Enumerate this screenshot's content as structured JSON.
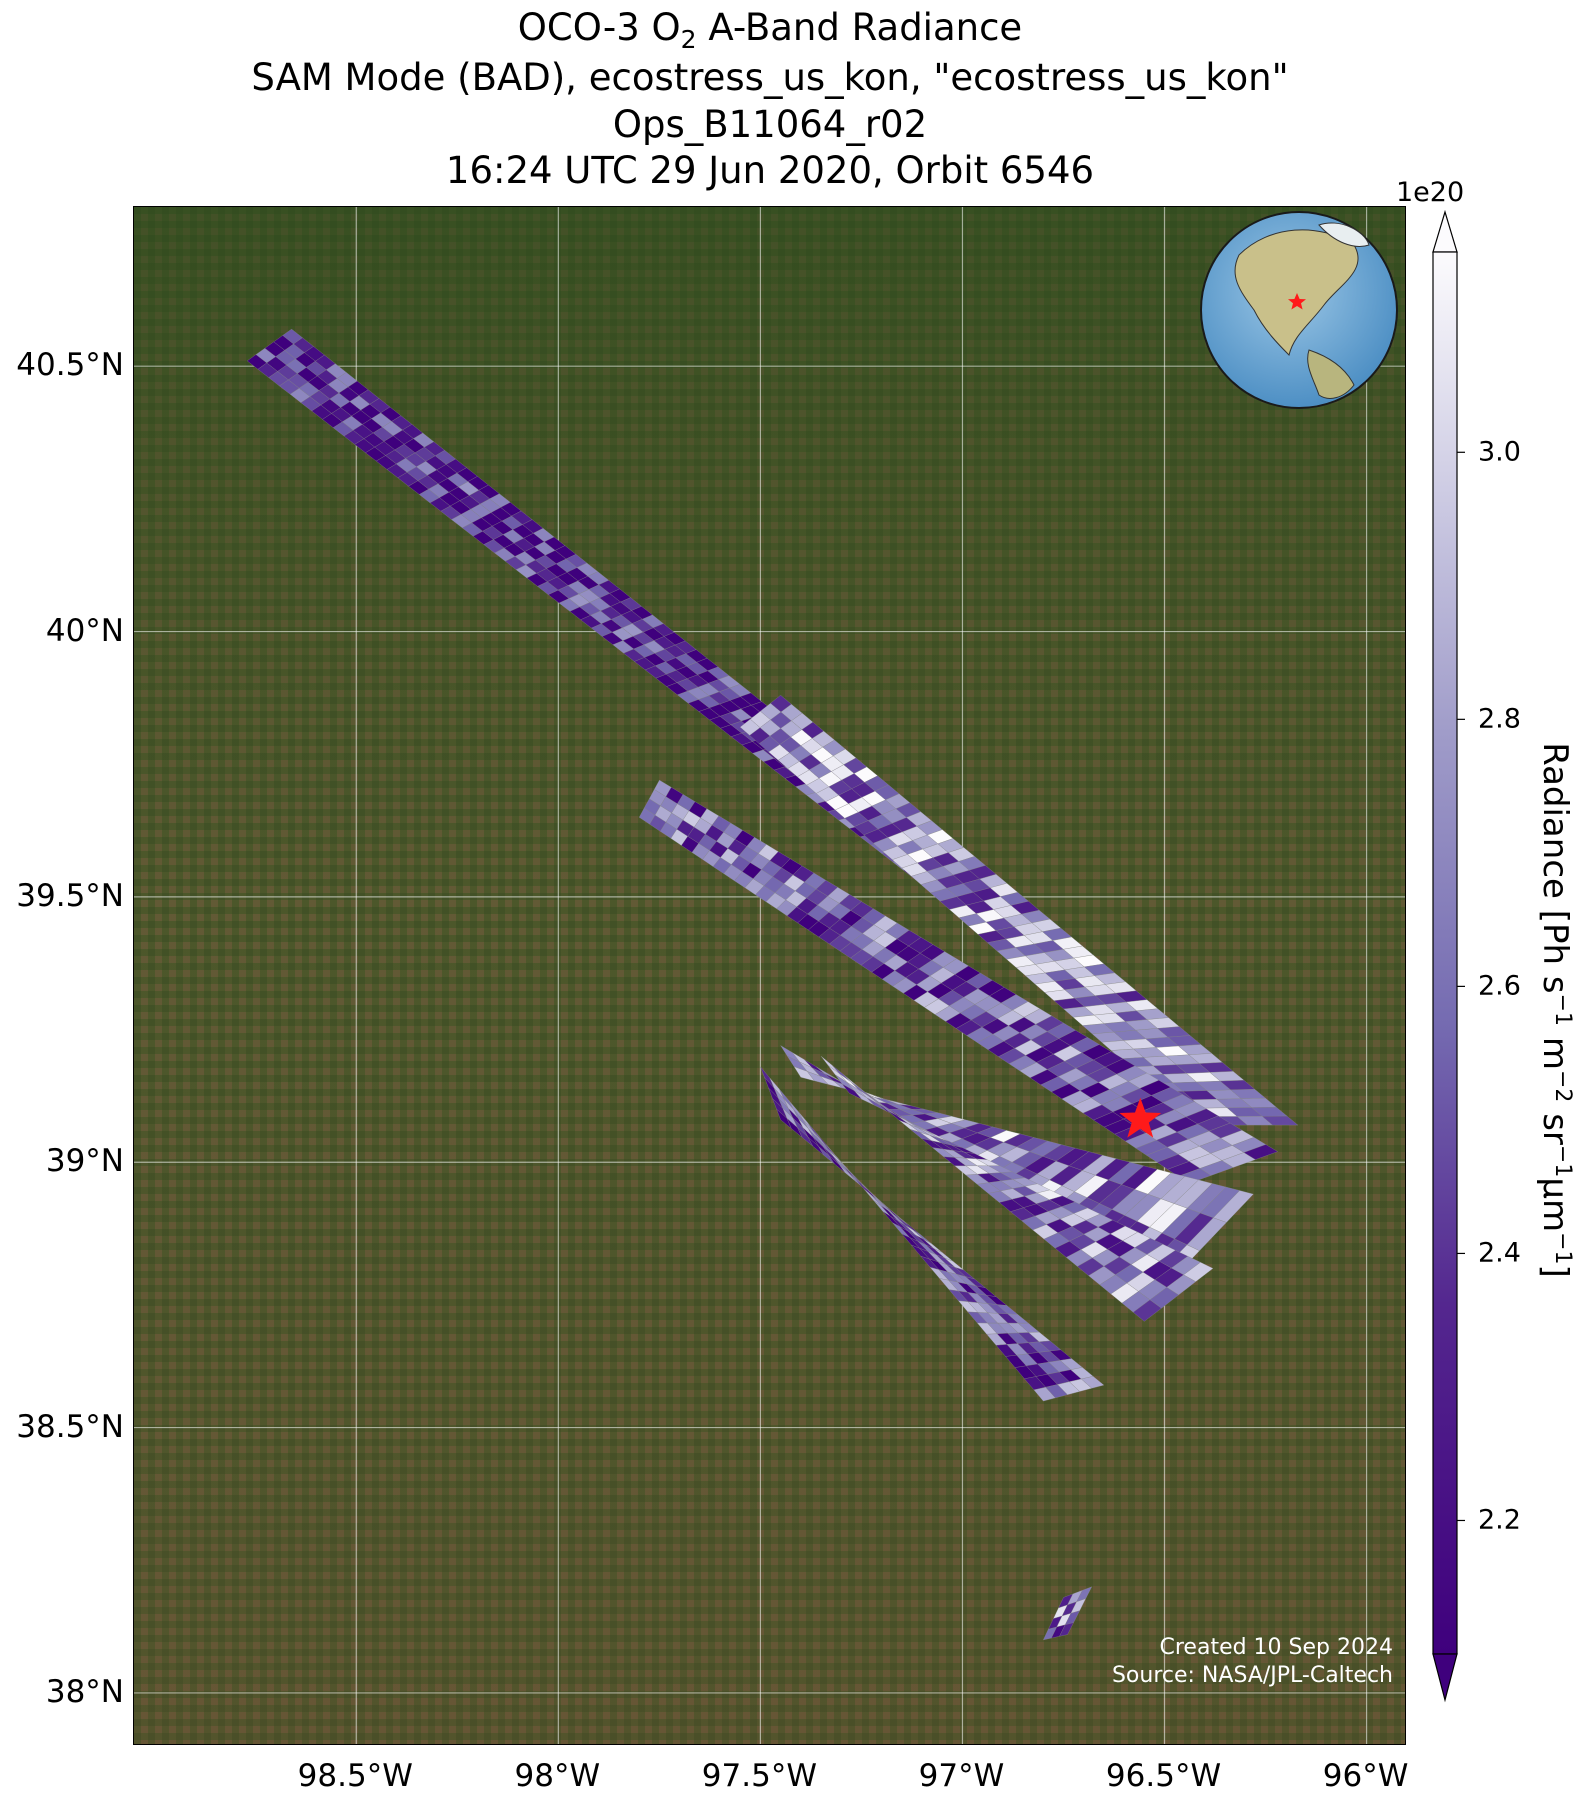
{
  "title": {
    "line1_prefix": "OCO-3 O",
    "line1_sub": "2",
    "line1_suffix": " A-Band Radiance",
    "line2": "SAM Mode (BAD), ecostress_us_kon, \"ecostress_us_kon\"",
    "line3": "Ops_B11064_r02",
    "line4": "16:24 UTC 29 Jun 2020, Orbit 6546"
  },
  "map": {
    "lon_range": [
      -99.05,
      -95.9
    ],
    "lat_range": [
      37.9,
      40.8
    ],
    "lon_ticks": [
      -98.5,
      -98.0,
      -97.5,
      -97.0,
      -96.5,
      -96.0
    ],
    "lon_tick_labels": [
      "98.5°W",
      "98°W",
      "97.5°W",
      "97°W",
      "96.5°W",
      "96°W"
    ],
    "lat_ticks": [
      40.5,
      40.0,
      39.5,
      39.0,
      38.5,
      38.0
    ],
    "lat_tick_labels": [
      "40.5°N",
      "40°N",
      "39.5°N",
      "39°N",
      "38.5°N",
      "38°N"
    ],
    "gridlines": true,
    "basemap": "satellite imagery",
    "target": {
      "lon": -96.56,
      "lat": 39.08,
      "marker": "red star"
    },
    "inset": "globe with red star over central United States",
    "credit_line1": "Created 10 Sep 2024",
    "credit_line2": "Source: NASA/JPL-Caltech"
  },
  "chart_data": {
    "type": "heatmap",
    "colormap": "Purples_r",
    "value_range": [
      2.1e+20,
      3.15e+20
    ],
    "swaths": [
      {
        "corners": [
          [
            -98.77,
            40.51
          ],
          [
            -98.66,
            40.57
          ],
          [
            -96.82,
            39.46
          ],
          [
            -96.96,
            39.44
          ]
        ],
        "mean": 2.3e+20
      },
      {
        "corners": [
          [
            -97.55,
            39.82
          ],
          [
            -97.45,
            39.88
          ],
          [
            -96.17,
            39.07
          ],
          [
            -96.42,
            39.07
          ]
        ],
        "mean": 2.75e+20
      },
      {
        "corners": [
          [
            -97.8,
            39.65
          ],
          [
            -97.75,
            39.72
          ],
          [
            -96.22,
            39.02
          ],
          [
            -96.44,
            38.96
          ]
        ],
        "mean": 2.5e+20
      },
      {
        "corners": [
          [
            -97.45,
            39.22
          ],
          [
            -97.4,
            39.16
          ],
          [
            -96.28,
            38.94
          ],
          [
            -96.48,
            38.78
          ]
        ],
        "mean": 2.7e+20
      },
      {
        "corners": [
          [
            -97.35,
            39.2
          ],
          [
            -97.28,
            39.13
          ],
          [
            -96.38,
            38.8
          ],
          [
            -96.55,
            38.7
          ]
        ],
        "mean": 2.65e+20
      },
      {
        "corners": [
          [
            -97.5,
            39.18
          ],
          [
            -97.45,
            39.08
          ],
          [
            -96.65,
            38.58
          ],
          [
            -96.8,
            38.55
          ]
        ],
        "mean": 2.5e+20
      },
      {
        "corners": [
          [
            -96.75,
            38.18
          ],
          [
            -96.68,
            38.2
          ],
          [
            -96.74,
            38.11
          ],
          [
            -96.8,
            38.1
          ]
        ],
        "mean": 2.6e+20
      }
    ]
  },
  "colorbar": {
    "exponent": "1e20",
    "ticks": [
      2.2,
      2.4,
      2.6,
      2.8,
      3.0
    ],
    "tick_labels": [
      "2.2",
      "2.4",
      "2.6",
      "2.8",
      "3.0"
    ],
    "range": [
      2.1,
      3.15
    ],
    "label_prefix": "Radiance [Ph s",
    "label_sup1": "−1",
    "label_mid1": " m",
    "label_sup2": "−2",
    "label_mid2": " sr",
    "label_sup3": "−1",
    "label_mid3": "µm",
    "label_sup4": "−1",
    "label_suffix": "]"
  }
}
